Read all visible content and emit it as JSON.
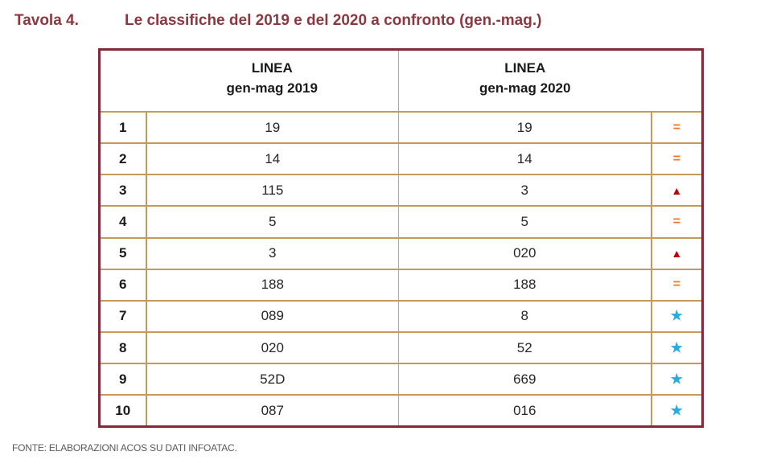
{
  "title": {
    "label": "Tavola 4.",
    "text": "Le classifiche del 2019 e del 2020 a confronto (gen.-mag.)"
  },
  "table": {
    "headers": {
      "col2019_line1": "LINEA",
      "col2019_line2": "gen-mag 2019",
      "col2020_line1": "LINEA",
      "col2020_line2": "gen-mag 2020"
    },
    "rows": [
      {
        "rank": "1",
        "v2019": "19",
        "v2020": "19",
        "symbol": "equal"
      },
      {
        "rank": "2",
        "v2019": "14",
        "v2020": "14",
        "symbol": "equal"
      },
      {
        "rank": "3",
        "v2019": "115",
        "v2020": "3",
        "symbol": "up"
      },
      {
        "rank": "4",
        "v2019": "5",
        "v2020": "5",
        "symbol": "equal"
      },
      {
        "rank": "5",
        "v2019": "3",
        "v2020": "020",
        "symbol": "up"
      },
      {
        "rank": "6",
        "v2019": "188",
        "v2020": "188",
        "symbol": "equal"
      },
      {
        "rank": "7",
        "v2019": "089",
        "v2020": "8",
        "symbol": "star"
      },
      {
        "rank": "8",
        "v2019": "020",
        "v2020": "52",
        "symbol": "star"
      },
      {
        "rank": "9",
        "v2019": "52D",
        "v2020": "669",
        "symbol": "star"
      },
      {
        "rank": "10",
        "v2019": "087",
        "v2020": "016",
        "symbol": "star"
      }
    ]
  },
  "symbols": {
    "equal": "=",
    "up": "▲",
    "star": "★"
  },
  "colors": {
    "title": "#8C3841",
    "outer_border": "#822838",
    "inner_border": "#C49A5A",
    "center_divider": "#B0AA99",
    "equal_symbol": "#F4741F",
    "up_symbol": "#C00000",
    "star_symbol": "#2BAAE2",
    "footer_text": "#595959"
  },
  "footer": {
    "text": "FONTE: ELABORAZIONI ACOS SU DATI INFOATAC."
  }
}
